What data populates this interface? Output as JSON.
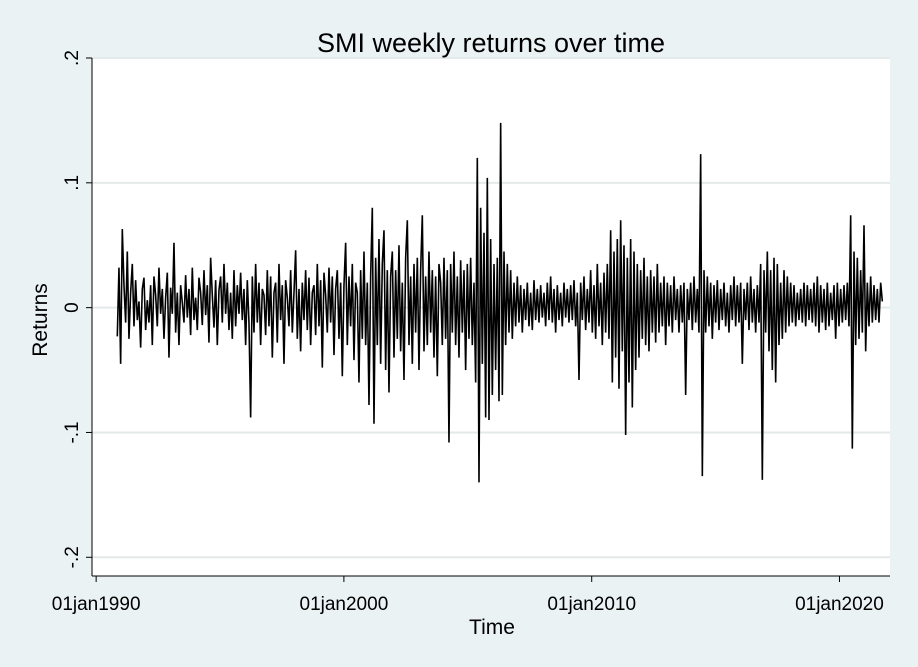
{
  "chart_data": {
    "type": "line",
    "title": "SMI weekly returns over time",
    "xlabel": "Time",
    "ylabel": "Returns",
    "xlim": [
      "1989-11-01",
      "2022-01-15"
    ],
    "ylim": [
      -0.215,
      0.2
    ],
    "x_ticks": [
      {
        "value": "1990-01-01",
        "label": "01jan1990"
      },
      {
        "value": "2000-01-01",
        "label": "01jan2000"
      },
      {
        "value": "2010-01-01",
        "label": "01jan2010"
      },
      {
        "value": "2020-01-01",
        "label": "01jan2020"
      }
    ],
    "y_ticks": [
      {
        "value": 0.2,
        "label": ".2"
      },
      {
        "value": 0.1,
        "label": ".1"
      },
      {
        "value": 0,
        "label": "0"
      },
      {
        "value": -0.1,
        "label": "-.1"
      },
      {
        "value": -0.2,
        "label": "-.2"
      }
    ],
    "grid": true,
    "legend": "none",
    "frequency": "weekly",
    "x_start": "1990-11-09",
    "x_end": "2021-09-24",
    "series": [
      {
        "color": "#000000",
        "values": [
          -0.023,
          0.032,
          -0.045,
          0.063,
          0.018,
          -0.012,
          0.045,
          -0.025,
          0.012,
          0.035,
          -0.015,
          0.022,
          -0.01,
          0.005,
          -0.032,
          0.015,
          0.024,
          -0.018,
          0.006,
          -0.012,
          0.018,
          -0.03,
          0.025,
          0.01,
          -0.015,
          0.032,
          -0.005,
          0.015,
          -0.025,
          0.008,
          0.028,
          -0.04,
          0.016,
          -0.005,
          0.052,
          -0.02,
          0.012,
          -0.03,
          0.018,
          0.004,
          -0.012,
          0.026,
          -0.008,
          0.015,
          -0.022,
          0.032,
          -0.01,
          0.008,
          -0.018,
          0.024,
          0.012,
          -0.014,
          0.03,
          -0.006,
          0.018,
          -0.028,
          0.04,
          0.01,
          -0.016,
          0.022,
          -0.03,
          0.014,
          0.025,
          -0.012,
          0.035,
          -0.005,
          0.02,
          -0.018,
          0.012,
          -0.025,
          0.03,
          -0.015,
          0.018,
          -0.005,
          0.028,
          -0.01,
          0.015,
          -0.03,
          0.022,
          -0.012,
          -0.088,
          0.025,
          -0.02,
          0.035,
          -0.012,
          0.02,
          -0.03,
          0.015,
          0.01,
          -0.022,
          0.03,
          -0.015,
          0.025,
          -0.04,
          0.012,
          0.02,
          -0.028,
          0.035,
          -0.01,
          0.018,
          -0.045,
          0.022,
          0.008,
          -0.015,
          0.03,
          -0.02,
          0.012,
          0.046,
          -0.025,
          0.015,
          -0.035,
          0.02,
          -0.01,
          0.03,
          -0.018,
          0.024,
          -0.03,
          0.012,
          0.018,
          -0.022,
          0.035,
          -0.015,
          0.022,
          -0.048,
          0.028,
          0.01,
          -0.02,
          0.032,
          -0.012,
          0.025,
          -0.038,
          0.015,
          0.03,
          -0.025,
          0.02,
          -0.055,
          0.018,
          0.052,
          -0.03,
          0.025,
          -0.015,
          0.035,
          -0.042,
          0.02,
          0.012,
          -0.06,
          0.03,
          -0.025,
          0.045,
          -0.03,
          0.02,
          -0.078,
          0.025,
          0.08,
          -0.093,
          0.04,
          -0.03,
          0.055,
          -0.045,
          0.035,
          0.062,
          -0.05,
          0.03,
          -0.068,
          0.025,
          0.045,
          -0.04,
          0.03,
          -0.025,
          0.05,
          -0.035,
          0.02,
          -0.058,
          0.04,
          0.07,
          -0.03,
          0.025,
          -0.045,
          0.035,
          -0.02,
          0.04,
          -0.05,
          0.03,
          0.074,
          -0.035,
          0.025,
          -0.03,
          0.045,
          -0.02,
          0.03,
          -0.04,
          0.025,
          -0.055,
          0.035,
          0.02,
          -0.03,
          0.04,
          -0.025,
          0.03,
          -0.108,
          0.035,
          -0.02,
          0.045,
          -0.03,
          0.025,
          -0.04,
          0.038,
          -0.02,
          0.03,
          -0.05,
          0.035,
          -0.025,
          0.04,
          -0.03,
          0.02,
          -0.06,
          0.12,
          -0.14,
          0.08,
          -0.045,
          0.06,
          -0.088,
          0.104,
          -0.09,
          0.055,
          -0.07,
          0.035,
          -0.05,
          0.04,
          -0.075,
          0.148,
          -0.07,
          0.045,
          -0.03,
          0.035,
          -0.02,
          0.03,
          -0.025,
          0.02,
          -0.015,
          0.025,
          -0.012,
          0.018,
          -0.02,
          0.015,
          -0.01,
          0.02,
          -0.015,
          0.012,
          -0.018,
          0.022,
          -0.01,
          0.015,
          -0.012,
          0.018,
          -0.008,
          0.012,
          -0.015,
          0.02,
          -0.01,
          0.025,
          -0.012,
          0.015,
          -0.02,
          0.018,
          -0.01,
          0.012,
          -0.015,
          0.02,
          -0.008,
          0.015,
          -0.012,
          0.018,
          -0.01,
          0.022,
          -0.015,
          0.012,
          -0.058,
          0.02,
          -0.01,
          0.025,
          -0.018,
          0.015,
          -0.012,
          0.03,
          -0.02,
          0.018,
          -0.025,
          0.035,
          -0.015,
          0.02,
          -0.03,
          0.028,
          -0.02,
          0.035,
          -0.025,
          0.062,
          -0.06,
          0.045,
          -0.04,
          0.055,
          -0.065,
          0.07,
          -0.035,
          0.05,
          -0.102,
          0.04,
          -0.06,
          0.055,
          -0.08,
          0.045,
          -0.05,
          0.035,
          -0.04,
          0.03,
          -0.025,
          0.04,
          -0.03,
          0.025,
          -0.035,
          0.03,
          -0.02,
          0.025,
          -0.028,
          0.035,
          -0.02,
          0.02,
          -0.015,
          0.025,
          -0.03,
          0.02,
          -0.015,
          0.018,
          -0.02,
          0.025,
          -0.01,
          0.015,
          -0.02,
          0.018,
          -0.012,
          0.02,
          -0.07,
          0.015,
          -0.01,
          0.02,
          -0.018,
          0.025,
          -0.012,
          0.015,
          -0.02,
          0.123,
          -0.135,
          0.03,
          -0.02,
          0.025,
          -0.015,
          0.02,
          -0.025,
          0.018,
          -0.012,
          0.022,
          -0.018,
          0.015,
          -0.01,
          0.02,
          -0.015,
          0.012,
          -0.02,
          0.018,
          -0.01,
          0.025,
          -0.015,
          0.018,
          -0.012,
          0.02,
          -0.045,
          0.015,
          -0.01,
          0.02,
          -0.018,
          0.025,
          -0.012,
          0.015,
          -0.02,
          0.018,
          -0.012,
          0.035,
          -0.138,
          0.03,
          -0.02,
          0.045,
          -0.035,
          0.03,
          -0.05,
          0.04,
          -0.06,
          0.035,
          -0.03,
          0.02,
          -0.025,
          0.03,
          -0.02,
          0.025,
          -0.015,
          0.02,
          -0.012,
          0.018,
          -0.015,
          0.012,
          -0.01,
          0.015,
          -0.012,
          0.02,
          -0.015,
          0.018,
          -0.01,
          0.015,
          -0.012,
          0.02,
          -0.015,
          0.025,
          -0.02,
          0.018,
          -0.012,
          0.015,
          -0.018,
          0.02,
          -0.015,
          0.012,
          -0.01,
          0.018,
          -0.025,
          0.02,
          -0.015,
          0.015,
          -0.012,
          0.018,
          -0.01,
          0.02,
          -0.015,
          0.074,
          -0.113,
          0.045,
          -0.03,
          0.04,
          -0.025,
          0.03,
          -0.02,
          0.066,
          -0.035,
          0.02,
          -0.015,
          0.025,
          -0.012,
          0.018,
          -0.01,
          0.015,
          -0.012,
          0.02,
          0.005
        ]
      }
    ]
  }
}
